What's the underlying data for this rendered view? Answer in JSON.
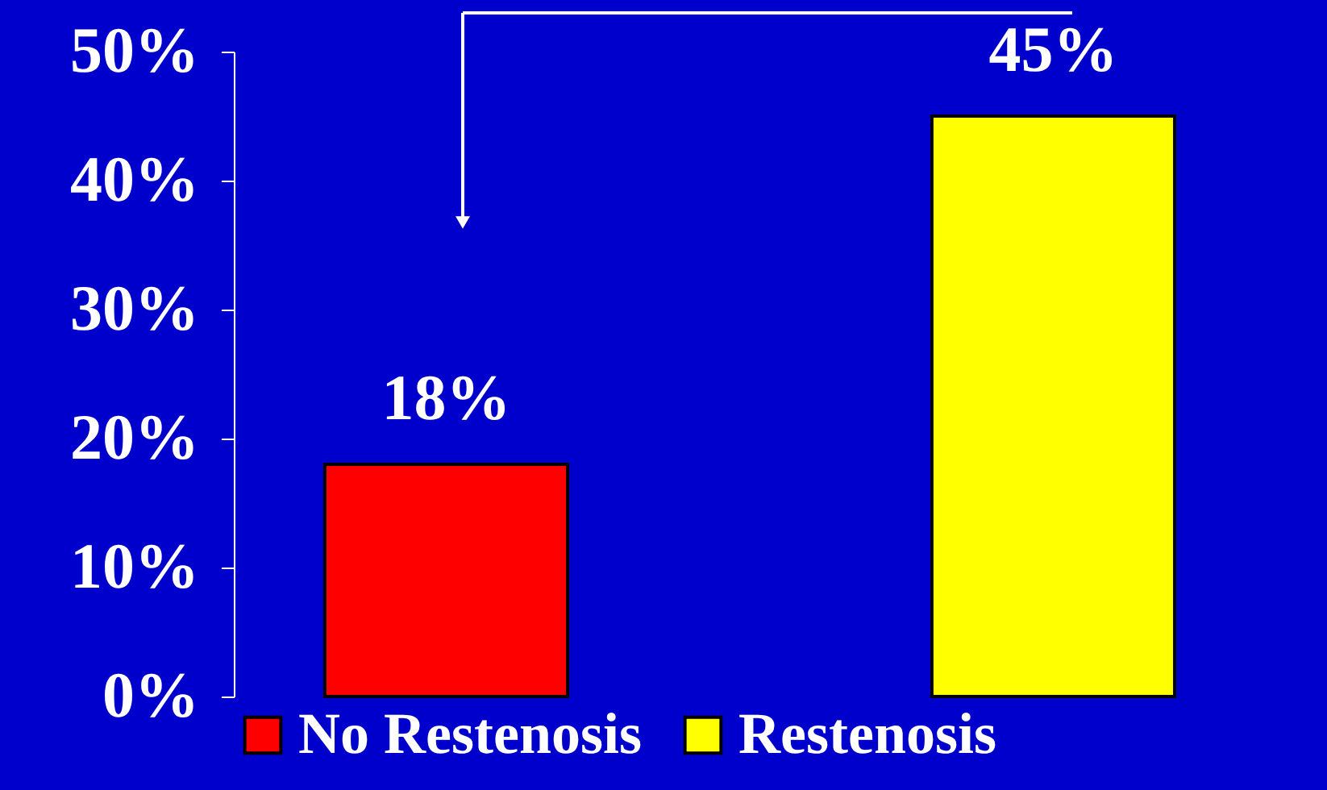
{
  "chart_data": {
    "type": "bar",
    "categories": [
      null,
      null
    ],
    "stacked": true,
    "series": [
      {
        "name": "No Restenosis",
        "color": "#ff0000",
        "values": [
          18,
          0
        ],
        "value_labels": [
          "18%",
          null
        ]
      },
      {
        "name": "Restenosis",
        "color": "#ffff00",
        "values": [
          0,
          45
        ],
        "value_labels": [
          null,
          "45%"
        ]
      }
    ],
    "ylim": [
      0,
      50
    ],
    "yticks": [
      {
        "value": 0,
        "label": "0%"
      },
      {
        "value": 10,
        "label": "10%"
      },
      {
        "value": 20,
        "label": "20%"
      },
      {
        "value": 30,
        "label": "30%"
      },
      {
        "value": 40,
        "label": "40%"
      },
      {
        "value": 50,
        "label": "50%"
      }
    ],
    "grid": false,
    "legend": "bottom",
    "tick_labels": "y"
  }
}
